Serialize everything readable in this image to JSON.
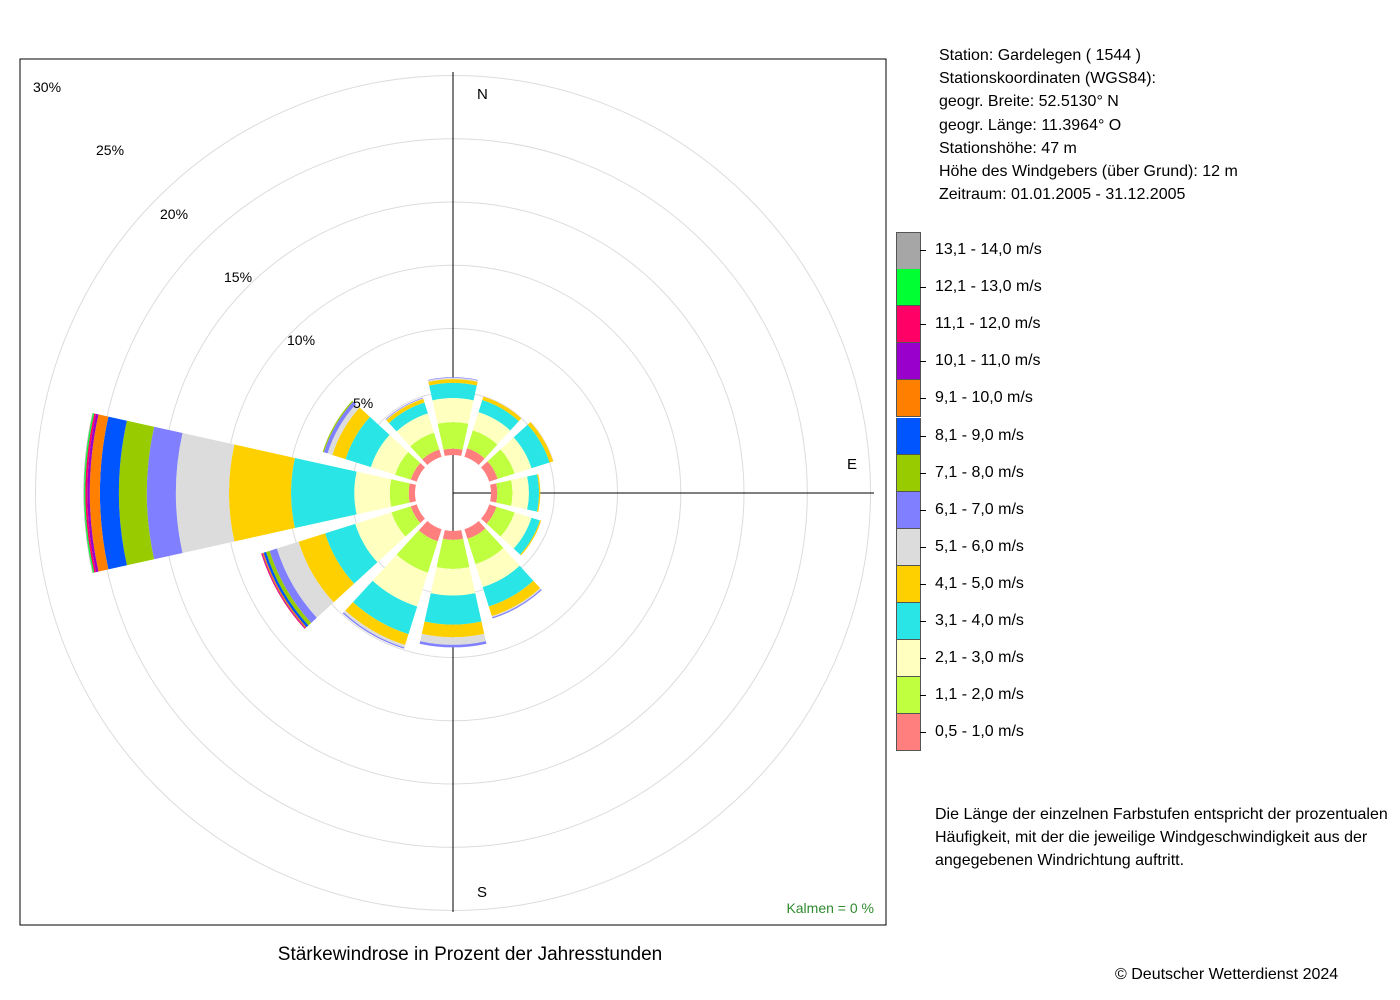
{
  "chart_data": {
    "type": "windrose",
    "title": "Stärkewindrose in Prozent der Jahresstunden",
    "unit": "%",
    "radial_ticks": [
      5,
      10,
      15,
      20,
      25,
      30
    ],
    "radial_tick_labels": [
      "5%",
      "10%",
      "15%",
      "20%",
      "25%",
      "30%"
    ],
    "direction_labels": {
      "N": "N",
      "E": "E",
      "S": "S"
    },
    "calm_label": "Kalmen  =  0 %",
    "sectors_deg": [
      0,
      30,
      60,
      90,
      120,
      150,
      180,
      210,
      240,
      270,
      300,
      330
    ],
    "speed_classes": [
      {
        "label": "0,5 - 1,0 m/s",
        "color": "#FF7F7F"
      },
      {
        "label": "1,1 - 2,0 m/s",
        "color": "#BFFF3F"
      },
      {
        "label": "2,1 - 3,0 m/s",
        "color": "#FFFFBF"
      },
      {
        "label": "3,1 - 4,0 m/s",
        "color": "#2AE5E5"
      },
      {
        "label": "4,1 - 5,0 m/s",
        "color": "#FFD000"
      },
      {
        "label": "5,1 - 6,0 m/s",
        "color": "#DCDCDC"
      },
      {
        "label": "6,1 - 7,0 m/s",
        "color": "#7F7FFF"
      },
      {
        "label": "7,1 - 8,0 m/s",
        "color": "#99CC00"
      },
      {
        "label": "8,1 - 9,0 m/s",
        "color": "#0055FF"
      },
      {
        "label": "9,1 - 10,0 m/s",
        "color": "#FF8000"
      },
      {
        "label": "10,1 - 11,0 m/s",
        "color": "#9900CC"
      },
      {
        "label": "11,1 - 12,0 m/s",
        "color": "#FF0066"
      },
      {
        "label": "12,1 - 13,0 m/s",
        "color": "#00FF33"
      },
      {
        "label": "13,1 - 14,0 m/s",
        "color": "#A6A6A6"
      }
    ],
    "series": [
      {
        "direction": 0,
        "values": [
          0.5,
          2.1,
          1.9,
          1.2,
          0.3,
          0.1,
          0.05,
          0,
          0,
          0,
          0,
          0,
          0,
          0
        ]
      },
      {
        "direction": 30,
        "values": [
          0.7,
          1.5,
          1.5,
          1.0,
          0.3,
          0.05,
          0,
          0,
          0,
          0,
          0,
          0,
          0,
          0
        ]
      },
      {
        "direction": 60,
        "values": [
          0.7,
          1.4,
          1.4,
          1.5,
          0.3,
          0.05,
          0,
          0,
          0,
          0,
          0,
          0,
          0,
          0
        ]
      },
      {
        "direction": 90,
        "values": [
          0.5,
          1.2,
          1.3,
          0.8,
          0.1,
          0,
          0,
          0,
          0,
          0,
          0,
          0,
          0,
          0
        ]
      },
      {
        "direction": 120,
        "values": [
          0.6,
          1.5,
          1.4,
          0.7,
          0.1,
          0,
          0,
          0,
          0,
          0,
          0,
          0,
          0,
          0
        ]
      },
      {
        "direction": 150,
        "values": [
          0.8,
          2.1,
          1.9,
          1.6,
          0.8,
          0.1,
          0.1,
          0,
          0,
          0,
          0,
          0,
          0,
          0
        ]
      },
      {
        "direction": 180,
        "values": [
          0.7,
          2.3,
          2.1,
          2.3,
          1.0,
          0.6,
          0.2,
          0,
          0,
          0,
          0,
          0,
          0,
          0
        ]
      },
      {
        "direction": 210,
        "values": [
          1.0,
          2.6,
          2.8,
          2.3,
          0.9,
          0.2,
          0.1,
          0,
          0,
          0,
          0,
          0,
          0,
          0
        ]
      },
      {
        "direction": 240,
        "values": [
          0.5,
          1.6,
          3.0,
          2.5,
          2.2,
          1.8,
          0.6,
          0.3,
          0.2,
          0.1,
          0.05,
          0.05,
          0,
          0
        ]
      },
      {
        "direction": 270,
        "values": [
          0.5,
          1.5,
          2.8,
          5.0,
          4.9,
          4.2,
          2.3,
          2.2,
          1.5,
          0.8,
          0.2,
          0.15,
          0.1,
          0.05
        ]
      },
      {
        "direction": 300,
        "values": [
          0.5,
          1.3,
          2.0,
          2.1,
          1.1,
          0.4,
          0.3,
          0.1,
          0,
          0,
          0,
          0,
          0,
          0
        ]
      },
      {
        "direction": 330,
        "values": [
          0.6,
          1.4,
          1.6,
          0.9,
          0.3,
          0.05,
          0.05,
          0,
          0,
          0,
          0,
          0,
          0,
          0
        ]
      }
    ]
  },
  "station": {
    "line1": "Station:  Gardelegen  ( 1544 )",
    "line2": "Stationskoordinaten (WGS84):",
    "line3": "geogr. Breite: 52.5130° N",
    "line4": "geogr. Länge: 11.3964° O",
    "line5": "Stationshöhe: 47 m",
    "line6": "Höhe des Windgebers (über Grund): 12 m",
    "line7": "Zeitraum: 01.01.2005 - 31.12.2005"
  },
  "description": "Die Länge der einzelnen Farbstufen entspricht der prozentualen Häufigkeit, mit der die jeweilige Windgeschwindigkeit aus der angegebenen Windrichtung auftritt.",
  "copyright": "© Deutscher Wetterdienst  2024"
}
